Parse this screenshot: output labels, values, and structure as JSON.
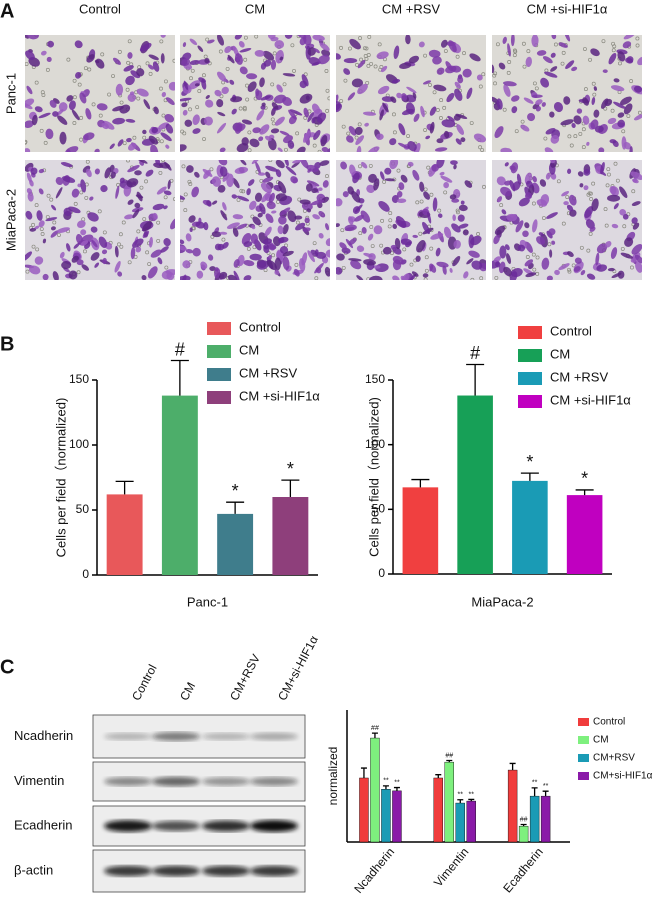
{
  "labels": [
    "A",
    "B",
    "C"
  ],
  "panel_a": {
    "columns": [
      "Control",
      "CM",
      "CM +RSV",
      "CM +si-HIF1α"
    ],
    "rows": [
      "Panc-1",
      "MiaPaca-2"
    ]
  },
  "panel_c": {
    "lanes": [
      "Control",
      "CM",
      "CM+RSV",
      "CM+si-HIF1α"
    ],
    "proteins": [
      "Ncadherin",
      "Vimentin",
      "Ecadherin",
      "β-actin"
    ]
  },
  "chart_data": [
    {
      "type": "bar",
      "xlabel": "Panc-1",
      "ylabel": "Cells per field（normalized)",
      "categories": [
        "Control",
        "CM",
        "CM +RSV",
        "CM +si-HIF1α"
      ],
      "values": [
        62,
        138,
        47,
        60
      ],
      "errors": [
        10,
        27,
        9,
        13
      ],
      "colors": [
        "#e8585a",
        "#4dae6a",
        "#3f7d8c",
        "#8e3f7b"
      ],
      "annotations": [
        null,
        "#",
        "*",
        "*"
      ],
      "ylim": [
        0,
        150
      ],
      "yticks": [
        0,
        50,
        100,
        150
      ],
      "legend": "top"
    },
    {
      "type": "bar",
      "xlabel": "MiaPaca-2",
      "ylabel": "Cells per field（normalized)",
      "categories": [
        "Control",
        "CM",
        "CM +RSV",
        "CM +si-HIF1α"
      ],
      "values": [
        67,
        138,
        72,
        61
      ],
      "errors": [
        6,
        24,
        6,
        4
      ],
      "colors": [
        "#f04040",
        "#17a057",
        "#1a9bb5",
        "#c000c0"
      ],
      "annotations": [
        null,
        "#",
        "*",
        "*"
      ],
      "ylim": [
        0,
        150
      ],
      "yticks": [
        0,
        50,
        100,
        150
      ],
      "legend": "top"
    },
    {
      "type": "grouped_bar",
      "ylabel": "normalized",
      "categories": [
        "Ncadherin",
        "Vimentin",
        "Ecadherin"
      ],
      "series": [
        {
          "name": "Control",
          "color": "#f03c3c",
          "values": [
            1.94,
            1.94,
            2.18
          ],
          "errors": [
            0.3,
            0.1,
            0.2
          ],
          "annotations": [
            null,
            null,
            null
          ]
        },
        {
          "name": "CM",
          "color": "#7ef07e",
          "values": [
            3.15,
            2.42,
            0.48
          ],
          "errors": [
            0.15,
            0.05,
            0.05
          ],
          "annotations": [
            "##",
            "##",
            "##"
          ]
        },
        {
          "name": "CM+RSV",
          "color": "#1a9bb5",
          "values": [
            1.6,
            1.18,
            1.39
          ],
          "errors": [
            0.1,
            0.1,
            0.25
          ],
          "annotations": [
            "**",
            "**",
            "**"
          ]
        },
        {
          "name": "CM+si-HIF1α",
          "color": "#8a1aa8",
          "values": [
            1.55,
            1.24,
            1.39
          ],
          "errors": [
            0.1,
            0.05,
            0.15
          ],
          "annotations": [
            "**",
            "**",
            "**"
          ]
        }
      ],
      "ylim": [
        0,
        4
      ],
      "legend": "right"
    }
  ]
}
